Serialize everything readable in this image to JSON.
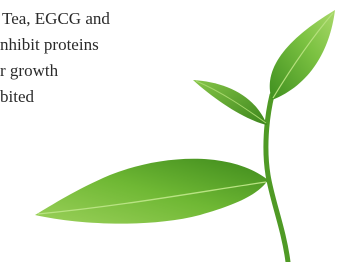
{
  "text": {
    "lines": [
      "Tea, EGCG and",
      "nhibit proteins",
      "r growth",
      "bited"
    ]
  }
}
